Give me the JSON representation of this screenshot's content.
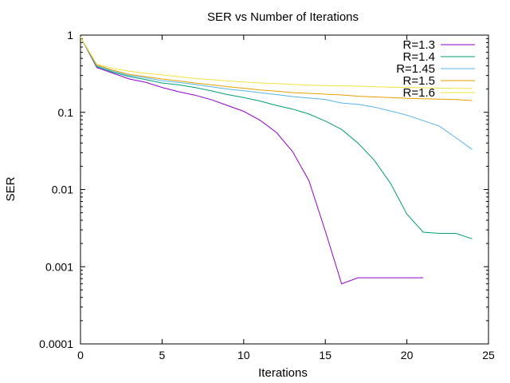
{
  "chart_data": {
    "type": "line",
    "title": "SER vs Number of Iterations",
    "xlabel": "Iterations",
    "ylabel": "SER",
    "xlim": [
      0,
      25
    ],
    "ylim": [
      0.0001,
      1
    ],
    "yscale": "log",
    "grid": false,
    "legend_position": "top-right",
    "xticks": [
      0,
      5,
      10,
      15,
      20,
      25
    ],
    "xtick_labels": [
      "0",
      "5",
      "10",
      "15",
      "20",
      "25"
    ],
    "yticks": [
      0.0001,
      0.001,
      0.01,
      0.1,
      1
    ],
    "ytick_labels": [
      "0.0001",
      "0.001",
      "0.01",
      "0.1",
      "1"
    ],
    "series": [
      {
        "name": "R=1.3",
        "color": "#9400d3",
        "x": [
          0,
          1,
          2,
          3,
          4,
          5,
          6,
          7,
          8,
          9,
          10,
          11,
          12,
          13,
          14,
          15,
          16,
          17,
          18,
          19,
          20,
          21
        ],
        "y": [
          0.95,
          0.38,
          0.32,
          0.27,
          0.245,
          0.21,
          0.185,
          0.167,
          0.146,
          0.123,
          0.103,
          0.079,
          0.055,
          0.031,
          0.013,
          0.0029,
          0.0006,
          0.00072,
          0.00072,
          0.00072,
          0.00072,
          0.00072
        ]
      },
      {
        "name": "R=1.4",
        "color": "#009e73",
        "x": [
          0,
          1,
          2,
          3,
          4,
          5,
          6,
          7,
          8,
          9,
          10,
          11,
          12,
          13,
          14,
          15,
          16,
          17,
          18,
          19,
          20,
          21,
          22,
          23,
          24
        ],
        "y": [
          0.95,
          0.39,
          0.33,
          0.29,
          0.265,
          0.24,
          0.227,
          0.21,
          0.19,
          0.17,
          0.155,
          0.14,
          0.123,
          0.11,
          0.095,
          0.077,
          0.06,
          0.04,
          0.024,
          0.012,
          0.0048,
          0.0028,
          0.0027,
          0.0027,
          0.0023
        ]
      },
      {
        "name": "R=1.45",
        "color": "#56b4e9",
        "x": [
          0,
          1,
          2,
          3,
          4,
          5,
          6,
          7,
          8,
          9,
          10,
          11,
          12,
          13,
          14,
          15,
          16,
          17,
          18,
          19,
          20,
          21,
          22,
          23,
          24
        ],
        "y": [
          0.95,
          0.4,
          0.34,
          0.3,
          0.28,
          0.257,
          0.244,
          0.23,
          0.215,
          0.2,
          0.19,
          0.18,
          0.17,
          0.16,
          0.153,
          0.147,
          0.132,
          0.127,
          0.117,
          0.104,
          0.092,
          0.078,
          0.066,
          0.047,
          0.033
        ]
      },
      {
        "name": "R=1.5",
        "color": "#e69f00",
        "x": [
          0,
          1,
          2,
          3,
          4,
          5,
          6,
          7,
          8,
          9,
          10,
          11,
          12,
          13,
          14,
          15,
          16,
          17,
          18,
          19,
          20,
          21,
          22,
          23,
          24
        ],
        "y": [
          0.95,
          0.41,
          0.35,
          0.31,
          0.29,
          0.27,
          0.255,
          0.24,
          0.228,
          0.215,
          0.205,
          0.195,
          0.188,
          0.18,
          0.176,
          0.172,
          0.168,
          0.162,
          0.158,
          0.155,
          0.152,
          0.15,
          0.148,
          0.146,
          0.142
        ]
      },
      {
        "name": "R=1.6",
        "color": "#f0e442",
        "x": [
          0,
          1,
          2,
          3,
          4,
          5,
          6,
          7,
          8,
          9,
          10,
          11,
          12,
          13,
          14,
          15,
          16,
          17,
          18,
          19,
          20,
          21,
          22,
          23,
          24
        ],
        "y": [
          0.95,
          0.42,
          0.37,
          0.34,
          0.32,
          0.305,
          0.29,
          0.275,
          0.265,
          0.255,
          0.247,
          0.24,
          0.235,
          0.23,
          0.225,
          0.222,
          0.22,
          0.218,
          0.215,
          0.212,
          0.21,
          0.208,
          0.206,
          0.204,
          0.203
        ]
      }
    ]
  }
}
